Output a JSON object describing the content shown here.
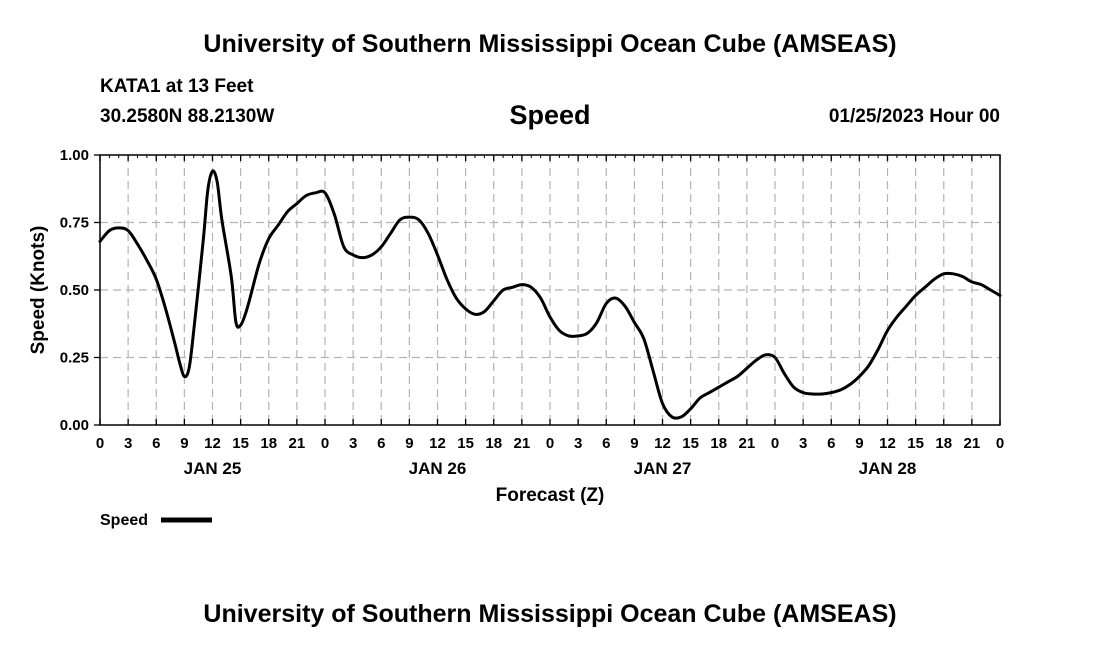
{
  "header": {
    "title_top": "University of Southern Mississippi Ocean Cube (AMSEAS)",
    "station": "KATA1 at 13 Feet",
    "coords": "30.2580N  88.2130W",
    "center_title": "Speed",
    "datetime": "01/25/2023 Hour 00",
    "title_bottom": "University of Southern Mississippi Ocean Cube (AMSEAS)"
  },
  "chart_data": {
    "type": "line",
    "title": "Speed",
    "xlabel": "Forecast (Z)",
    "ylabel": "Speed (Knots)",
    "xlim": [
      0,
      96
    ],
    "ylim": [
      0,
      1.0
    ],
    "yticks": [
      0,
      0.25,
      0.5,
      0.75,
      1.0
    ],
    "ytick_labels": [
      "0.00",
      "0.25",
      "0.50",
      "0.75",
      "1.00"
    ],
    "xtick_labels": [
      "0",
      "3",
      "6",
      "9",
      "12",
      "15",
      "18",
      "21",
      "0",
      "3",
      "6",
      "9",
      "12",
      "15",
      "18",
      "21",
      "0",
      "3",
      "6",
      "9",
      "12",
      "15",
      "18",
      "21",
      "0",
      "3",
      "6",
      "9",
      "12",
      "15",
      "18",
      "21",
      "0"
    ],
    "day_labels": [
      {
        "label": "JAN 25",
        "hour": 12
      },
      {
        "label": "JAN 26",
        "hour": 36
      },
      {
        "label": "JAN 27",
        "hour": 60
      },
      {
        "label": "JAN 28",
        "hour": 84
      }
    ],
    "grid": true,
    "legend": {
      "position": "bottom-left",
      "entries": [
        "Speed"
      ]
    },
    "series": [
      {
        "name": "Speed",
        "x": [
          0,
          1,
          2,
          3,
          4,
          5,
          6,
          7,
          8,
          8.5,
          9,
          9.5,
          10,
          11,
          11.5,
          12,
          12.5,
          13,
          14,
          14.5,
          15,
          15.5,
          16,
          17,
          18,
          19,
          20,
          21,
          22,
          23,
          24,
          25,
          26,
          27,
          28,
          29,
          30,
          31,
          32,
          33,
          34,
          35,
          36,
          37,
          38,
          39,
          40,
          41,
          42,
          43,
          44,
          45,
          46,
          47,
          48,
          49,
          50,
          51,
          52,
          53,
          54,
          55,
          56,
          57,
          58,
          59,
          60,
          61,
          62,
          63,
          64,
          65,
          66,
          67,
          68,
          69,
          70,
          71,
          72,
          73,
          74,
          75,
          76,
          77,
          78,
          79,
          80,
          81,
          82,
          83,
          84,
          85,
          86,
          87,
          88,
          89,
          90,
          91,
          92,
          93,
          94,
          95,
          96
        ],
        "values": [
          0.68,
          0.72,
          0.73,
          0.72,
          0.67,
          0.61,
          0.54,
          0.43,
          0.3,
          0.23,
          0.18,
          0.21,
          0.35,
          0.68,
          0.87,
          0.94,
          0.9,
          0.76,
          0.55,
          0.38,
          0.37,
          0.41,
          0.47,
          0.6,
          0.69,
          0.74,
          0.79,
          0.82,
          0.85,
          0.86,
          0.86,
          0.78,
          0.66,
          0.63,
          0.62,
          0.63,
          0.66,
          0.71,
          0.76,
          0.77,
          0.76,
          0.71,
          0.63,
          0.54,
          0.47,
          0.43,
          0.41,
          0.42,
          0.46,
          0.5,
          0.51,
          0.52,
          0.51,
          0.47,
          0.4,
          0.35,
          0.33,
          0.33,
          0.34,
          0.38,
          0.45,
          0.47,
          0.44,
          0.38,
          0.32,
          0.2,
          0.08,
          0.03,
          0.03,
          0.06,
          0.1,
          0.12,
          0.14,
          0.16,
          0.18,
          0.21,
          0.24,
          0.26,
          0.25,
          0.19,
          0.14,
          0.12,
          0.115,
          0.115,
          0.12,
          0.13,
          0.15,
          0.18,
          0.22,
          0.28,
          0.35,
          0.4,
          0.44,
          0.48,
          0.51,
          0.54,
          0.56,
          0.56,
          0.55,
          0.53,
          0.52,
          0.5,
          0.48
        ]
      }
    ]
  }
}
